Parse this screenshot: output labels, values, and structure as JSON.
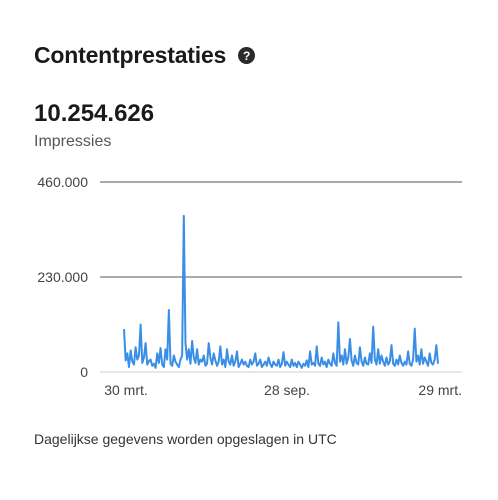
{
  "header": {
    "title": "Contentprestaties",
    "help_icon": "question-circle-icon"
  },
  "metric": {
    "value": "10.254.626",
    "label": "Impressies"
  },
  "chart_data": {
    "type": "line",
    "title": "",
    "xlabel": "",
    "ylabel": "",
    "ylim": [
      0,
      460000
    ],
    "grid": true,
    "y_ticks": [
      "0",
      "230.000",
      "460.000"
    ],
    "x_ticks": [
      "30 mrt.",
      "28 sep.",
      "29 mrt."
    ],
    "line_color": "#3b8ee6",
    "series": [
      {
        "name": "",
        "values": [
          104000,
          28000,
          45000,
          12000,
          52000,
          25000,
          18000,
          60000,
          30000,
          40000,
          115000,
          22000,
          35000,
          70000,
          18000,
          26000,
          30000,
          15000,
          20000,
          10000,
          45000,
          22000,
          58000,
          18000,
          12000,
          55000,
          30000,
          150000,
          20000,
          15000,
          40000,
          25000,
          18000,
          12000,
          30000,
          40000,
          378000,
          70000,
          30000,
          55000,
          20000,
          75000,
          35000,
          22000,
          55000,
          18000,
          30000,
          25000,
          40000,
          15000,
          20000,
          70000,
          35000,
          18000,
          45000,
          28000,
          15000,
          25000,
          62000,
          18000,
          30000,
          12000,
          55000,
          25000,
          18000,
          40000,
          15000,
          25000,
          50000,
          12000,
          20000,
          30000,
          18000,
          25000,
          15000,
          12000,
          30000,
          18000,
          25000,
          45000,
          15000,
          20000,
          30000,
          12000,
          18000,
          25000,
          15000,
          35000,
          20000,
          12000,
          25000,
          18000,
          15000,
          30000,
          12000,
          20000,
          48000,
          15000,
          25000,
          18000,
          12000,
          30000,
          15000,
          22000,
          12000,
          25000,
          18000,
          10000,
          20000,
          15000,
          28000,
          12000,
          50000,
          18000,
          22000,
          15000,
          62000,
          20000,
          15000,
          35000,
          18000,
          25000,
          12000,
          30000,
          20000,
          15000,
          45000,
          22000,
          15000,
          120000,
          25000,
          40000,
          18000,
          55000,
          20000,
          35000,
          80000,
          28000,
          15000,
          40000,
          22000,
          18000,
          60000,
          25000,
          15000,
          35000,
          20000,
          18000,
          45000,
          22000,
          110000,
          30000,
          18000,
          55000,
          20000,
          40000,
          25000,
          15000,
          35000,
          18000,
          25000,
          65000,
          20000,
          15000,
          30000,
          18000,
          40000,
          22000,
          15000,
          25000,
          18000,
          50000,
          20000,
          15000,
          30000,
          105000,
          25000,
          40000,
          18000,
          55000,
          20000,
          35000,
          25000,
          15000,
          45000,
          22000,
          18000,
          30000,
          65000,
          20000
        ]
      }
    ]
  },
  "footnote": "Dagelijkse gegevens worden opgeslagen in UTC"
}
